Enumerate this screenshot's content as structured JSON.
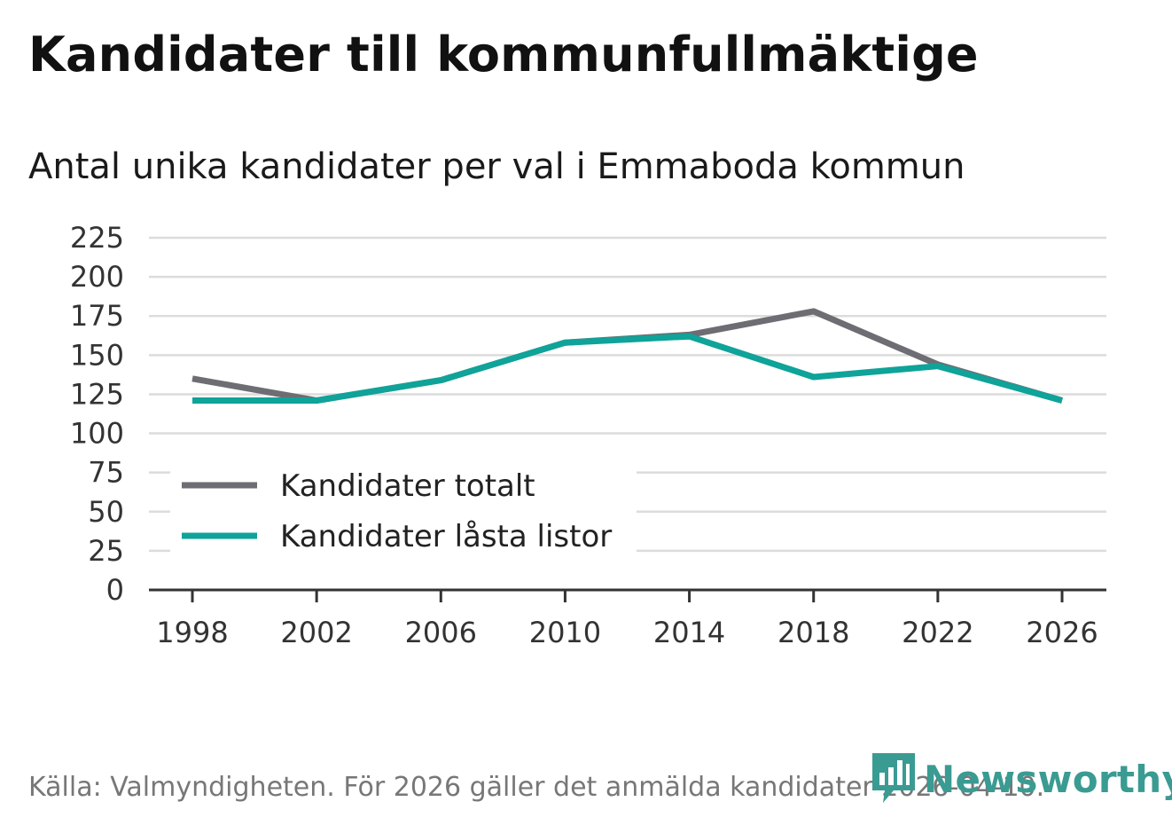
{
  "header": {
    "title": "Kandidater till kommunfullmäktige",
    "subtitle": "Antal unika kandidater per val i Emmaboda kommun"
  },
  "footer": {
    "source": "Källa: Valmyndigheten. För 2026 gäller det anmälda kandidater 2026-04-10."
  },
  "logo": {
    "text": "Newsworthy",
    "icon": "bar-chart-speech-bubble-icon",
    "color": "#3a9b92"
  },
  "chart_data": {
    "type": "line",
    "title": "Kandidater till kommunfullmäktige",
    "subtitle": "Antal unika kandidater per val i Emmaboda kommun",
    "xlabel": "",
    "ylabel": "",
    "x": [
      "1998",
      "2002",
      "2006",
      "2010",
      "2014",
      "2018",
      "2022",
      "2026"
    ],
    "yticks": [
      0,
      25,
      50,
      75,
      100,
      125,
      150,
      175,
      200,
      225
    ],
    "ylim": [
      0,
      225
    ],
    "grid": true,
    "legend_position": "bottom-left",
    "series": [
      {
        "name": "Kandidater totalt",
        "color": "#6e6d73",
        "values": [
          135,
          121,
          134,
          158,
          163,
          178,
          144,
          121
        ]
      },
      {
        "name": "Kandidater låsta listor",
        "color": "#0fa399",
        "values": [
          121,
          121,
          134,
          158,
          162,
          136,
          143,
          121
        ]
      }
    ]
  }
}
